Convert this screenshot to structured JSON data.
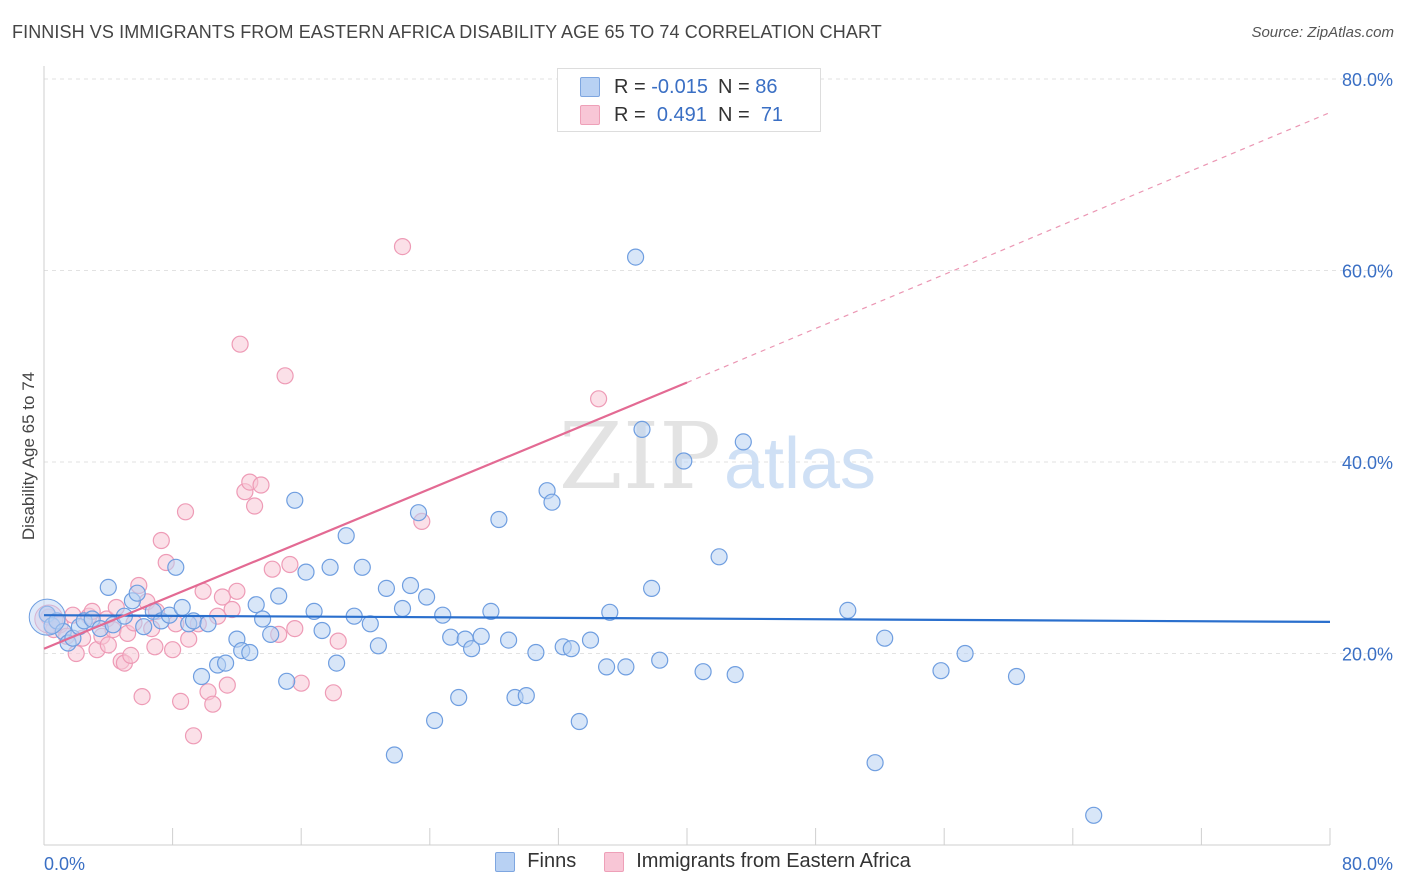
{
  "title": "FINNISH VS IMMIGRANTS FROM EASTERN AFRICA DISABILITY AGE 65 TO 74 CORRELATION CHART",
  "source": "Source: ZipAtlas.com",
  "watermark": {
    "zip": "ZIP",
    "atlas": "atlas"
  },
  "legend_top": {
    "rows": [
      {
        "r_label": "R =",
        "r_value": "-0.015",
        "n_label": "N =",
        "n_value": "86"
      },
      {
        "r_label": "R =",
        "r_value": "0.491",
        "n_label": "N =",
        "n_value": "71"
      }
    ]
  },
  "colors": {
    "finns_fill": "#b8d1f3",
    "finns_stroke": "#6f9ee0",
    "finns_line": "#2a6fcd",
    "imm_fill": "#f8c6d6",
    "imm_stroke": "#ee9bb6",
    "imm_line": "#e36a93",
    "tick_text": "#3a6fc4"
  },
  "chart_data": {
    "type": "scatter",
    "title": "FINNISH VS IMMIGRANTS FROM EASTERN AFRICA DISABILITY AGE 65 TO 74 CORRELATION CHART",
    "xlabel": "",
    "ylabel": "Disability Age 65 to 74",
    "xlim": [
      0,
      80
    ],
    "ylim": [
      0,
      80
    ],
    "x_tick_labels": [
      "0.0%",
      "80.0%"
    ],
    "y_tick_labels": [
      "20.0%",
      "40.0%",
      "60.0%",
      "80.0%"
    ],
    "y_ticks": [
      20,
      40,
      60,
      80
    ],
    "grid": true,
    "legend": "bottom-center",
    "series": [
      {
        "name": "Finns",
        "r": -0.015,
        "n": 86,
        "trend": {
          "x": [
            0,
            80
          ],
          "y": [
            24.0,
            23.3
          ],
          "dashed_extension": false
        },
        "points": [
          [
            0.2,
            24.1
          ],
          [
            0.5,
            22.9
          ],
          [
            0.8,
            23.4
          ],
          [
            1.2,
            22.3
          ],
          [
            1.5,
            21.1
          ],
          [
            1.8,
            21.6
          ],
          [
            2.2,
            22.8
          ],
          [
            2.5,
            23.4
          ],
          [
            3.0,
            23.6
          ],
          [
            3.5,
            22.6
          ],
          [
            4.0,
            26.9
          ],
          [
            4.3,
            23.0
          ],
          [
            5.0,
            23.9
          ],
          [
            5.5,
            25.5
          ],
          [
            5.8,
            26.3
          ],
          [
            6.2,
            22.8
          ],
          [
            6.8,
            24.4
          ],
          [
            7.3,
            23.4
          ],
          [
            7.8,
            24.0
          ],
          [
            8.2,
            29.0
          ],
          [
            8.6,
            24.8
          ],
          [
            9.0,
            23.1
          ],
          [
            9.3,
            23.4
          ],
          [
            9.8,
            17.6
          ],
          [
            10.2,
            23.1
          ],
          [
            10.8,
            18.8
          ],
          [
            11.3,
            19.0
          ],
          [
            12.0,
            21.5
          ],
          [
            12.3,
            20.3
          ],
          [
            12.8,
            20.1
          ],
          [
            13.2,
            25.1
          ],
          [
            13.6,
            23.6
          ],
          [
            14.1,
            22.0
          ],
          [
            14.6,
            26.0
          ],
          [
            15.1,
            17.1
          ],
          [
            15.6,
            36.0
          ],
          [
            16.3,
            28.5
          ],
          [
            16.8,
            24.4
          ],
          [
            17.3,
            22.4
          ],
          [
            17.8,
            29.0
          ],
          [
            18.2,
            19.0
          ],
          [
            18.8,
            32.3
          ],
          [
            19.3,
            23.9
          ],
          [
            19.8,
            29.0
          ],
          [
            20.3,
            23.1
          ],
          [
            20.8,
            20.8
          ],
          [
            21.3,
            26.8
          ],
          [
            21.8,
            9.4
          ],
          [
            22.3,
            24.7
          ],
          [
            22.8,
            27.1
          ],
          [
            23.3,
            34.7
          ],
          [
            23.8,
            25.9
          ],
          [
            24.3,
            13.0
          ],
          [
            24.8,
            24.0
          ],
          [
            25.3,
            21.7
          ],
          [
            25.8,
            15.4
          ],
          [
            26.2,
            21.5
          ],
          [
            26.6,
            20.5
          ],
          [
            27.2,
            21.8
          ],
          [
            27.8,
            24.4
          ],
          [
            28.3,
            34.0
          ],
          [
            28.9,
            21.4
          ],
          [
            29.3,
            15.4
          ],
          [
            30.0,
            15.6
          ],
          [
            30.6,
            20.1
          ],
          [
            31.3,
            37.0
          ],
          [
            31.6,
            35.8
          ],
          [
            32.3,
            20.7
          ],
          [
            32.8,
            20.5
          ],
          [
            33.3,
            12.9
          ],
          [
            34.0,
            21.4
          ],
          [
            35.0,
            18.6
          ],
          [
            35.2,
            24.3
          ],
          [
            36.2,
            18.6
          ],
          [
            36.8,
            61.4
          ],
          [
            37.2,
            43.4
          ],
          [
            37.8,
            26.8
          ],
          [
            38.3,
            19.3
          ],
          [
            39.8,
            40.1
          ],
          [
            41.0,
            18.1
          ],
          [
            42.0,
            30.1
          ],
          [
            43.0,
            17.8
          ],
          [
            43.5,
            42.1
          ],
          [
            50.0,
            24.5
          ],
          [
            52.3,
            21.6
          ],
          [
            55.8,
            18.2
          ],
          [
            57.3,
            20.0
          ],
          [
            60.5,
            17.6
          ],
          [
            65.3,
            3.1
          ],
          [
            51.7,
            8.6
          ]
        ]
      },
      {
        "name": "Immigrants from Eastern Africa",
        "r": 0.491,
        "n": 71,
        "trend": {
          "x": [
            0,
            40,
            80
          ],
          "y": [
            20.5,
            48.3,
            76.5
          ],
          "dashed_extension": true
        },
        "points": [
          [
            0.3,
            23.8
          ],
          [
            0.6,
            22.5
          ],
          [
            1.0,
            23.0
          ],
          [
            1.4,
            21.8
          ],
          [
            1.8,
            24.0
          ],
          [
            2.0,
            20.0
          ],
          [
            2.4,
            21.6
          ],
          [
            2.8,
            23.9
          ],
          [
            3.0,
            24.4
          ],
          [
            3.3,
            20.4
          ],
          [
            3.6,
            21.8
          ],
          [
            3.9,
            23.6
          ],
          [
            4.0,
            20.9
          ],
          [
            4.3,
            22.5
          ],
          [
            4.5,
            24.8
          ],
          [
            4.8,
            19.2
          ],
          [
            5.0,
            19.0
          ],
          [
            5.2,
            22.1
          ],
          [
            5.4,
            19.8
          ],
          [
            5.6,
            23.2
          ],
          [
            5.9,
            27.1
          ],
          [
            6.1,
            15.5
          ],
          [
            6.4,
            25.4
          ],
          [
            6.7,
            22.6
          ],
          [
            6.9,
            20.7
          ],
          [
            7.0,
            24.4
          ],
          [
            7.3,
            31.8
          ],
          [
            7.6,
            29.5
          ],
          [
            8.0,
            20.4
          ],
          [
            8.2,
            23.1
          ],
          [
            8.5,
            15.0
          ],
          [
            8.8,
            34.8
          ],
          [
            9.0,
            21.5
          ],
          [
            9.3,
            11.4
          ],
          [
            9.6,
            23.1
          ],
          [
            9.9,
            26.5
          ],
          [
            10.2,
            16.0
          ],
          [
            10.5,
            14.7
          ],
          [
            10.8,
            23.9
          ],
          [
            11.1,
            25.9
          ],
          [
            11.4,
            16.7
          ],
          [
            11.7,
            24.6
          ],
          [
            12.0,
            26.5
          ],
          [
            12.2,
            52.3
          ],
          [
            12.5,
            36.9
          ],
          [
            12.8,
            37.9
          ],
          [
            13.1,
            35.4
          ],
          [
            13.5,
            37.6
          ],
          [
            14.2,
            28.8
          ],
          [
            14.6,
            22.0
          ],
          [
            15.0,
            49.0
          ],
          [
            15.3,
            29.3
          ],
          [
            15.6,
            22.6
          ],
          [
            16.0,
            16.9
          ],
          [
            18.0,
            15.9
          ],
          [
            18.3,
            21.3
          ],
          [
            22.3,
            62.5
          ],
          [
            23.5,
            33.8
          ],
          [
            34.5,
            46.6
          ]
        ]
      }
    ]
  }
}
